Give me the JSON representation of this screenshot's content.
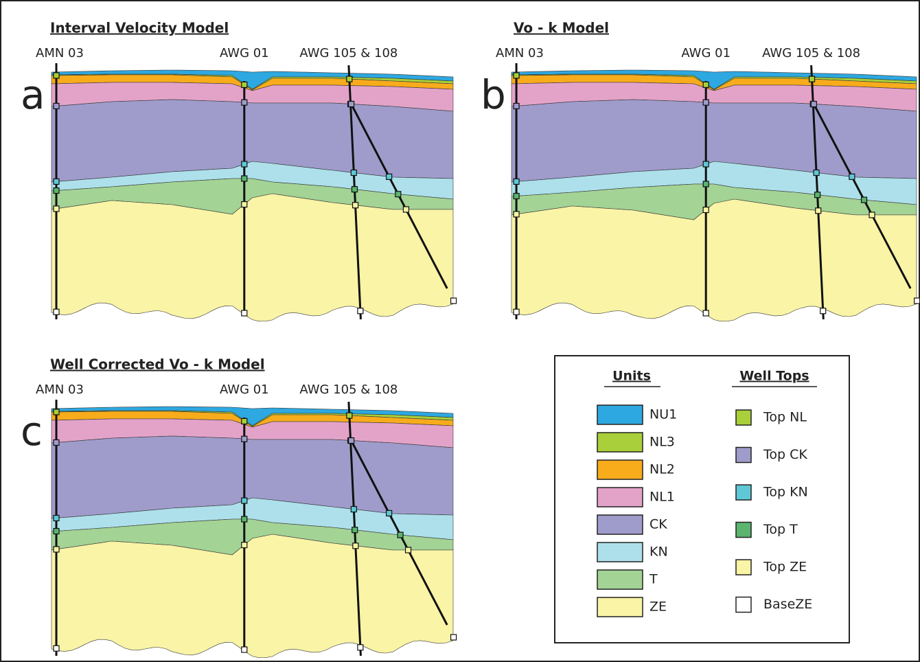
{
  "panels": [
    {
      "title": "Interval Velocity Model",
      "letter": "a",
      "wells": [
        "AMN 03",
        "AWG 01",
        "AWG 105 & 108"
      ]
    },
    {
      "title": "Vo - k Model",
      "letter": "b",
      "wells": [
        "AMN 03",
        "AWG 01",
        "AWG 105 & 108"
      ]
    },
    {
      "title": "Well Corrected Vo - k Model",
      "letter": "c",
      "wells": [
        "AMN 03",
        "AWG 01",
        "AWG 105 & 108"
      ]
    }
  ],
  "legend": {
    "units": {
      "title": "Units",
      "items": [
        {
          "name": "NU1",
          "color": "#2ea8e0"
        },
        {
          "name": "NL3",
          "color": "#a9cf3a"
        },
        {
          "name": "NL2",
          "color": "#f8ac1c"
        },
        {
          "name": "NL1",
          "color": "#e3a3c9"
        },
        {
          "name": "CK",
          "color": "#9f9ccb"
        },
        {
          "name": "KN",
          "color": "#ade0eb"
        },
        {
          "name": "T",
          "color": "#a3d395"
        },
        {
          "name": "ZE",
          "color": "#f9f4a6"
        }
      ]
    },
    "well_tops": {
      "title": "Well Tops",
      "items": [
        {
          "name": "Top NL",
          "color": "#a9cf3a"
        },
        {
          "name": "Top CK",
          "color": "#9f9ccb"
        },
        {
          "name": "Top KN",
          "color": "#5fc8d6"
        },
        {
          "name": "Top T",
          "color": "#5bb56e"
        },
        {
          "name": "Top ZE",
          "color": "#f9f4a6"
        },
        {
          "name": "BaseZE",
          "color": "#ffffff"
        }
      ]
    }
  }
}
